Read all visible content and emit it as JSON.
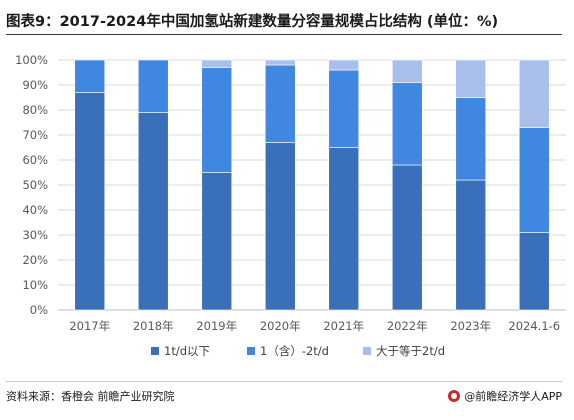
{
  "title": "图表9：2017-2024年中国加氢站新建数量分容量规模占比结构 (单位：%)",
  "footer": {
    "source": "资料来源：香橙会 前瞻产业研究院",
    "brand": "@前瞻经济学人APP"
  },
  "colors": {
    "series": [
      "#3a6fba",
      "#3f87e0",
      "#a9bfea"
    ],
    "grid": "#d9d9d9",
    "axis_text": "#595959"
  },
  "chart_data": {
    "type": "bar",
    "stacked": true,
    "categories": [
      "2017年",
      "2018年",
      "2019年",
      "2020年",
      "2021年",
      "2022年",
      "2023年",
      "2024.1-6"
    ],
    "series": [
      {
        "name": "1t/d以下",
        "values": [
          87,
          79,
          55,
          67,
          65,
          58,
          52,
          31
        ]
      },
      {
        "name": "1（含）-2t/d",
        "values": [
          13,
          21,
          42,
          31,
          31,
          33,
          33,
          42
        ]
      },
      {
        "name": "大于等于2t/d",
        "values": [
          0,
          0,
          3,
          2,
          4,
          9,
          15,
          27
        ]
      }
    ],
    "ylim": [
      0,
      100
    ],
    "yticks": [
      "0%",
      "10%",
      "20%",
      "30%",
      "40%",
      "50%",
      "60%",
      "70%",
      "80%",
      "90%",
      "100%"
    ],
    "grid": true,
    "legend_position": "bottom"
  }
}
